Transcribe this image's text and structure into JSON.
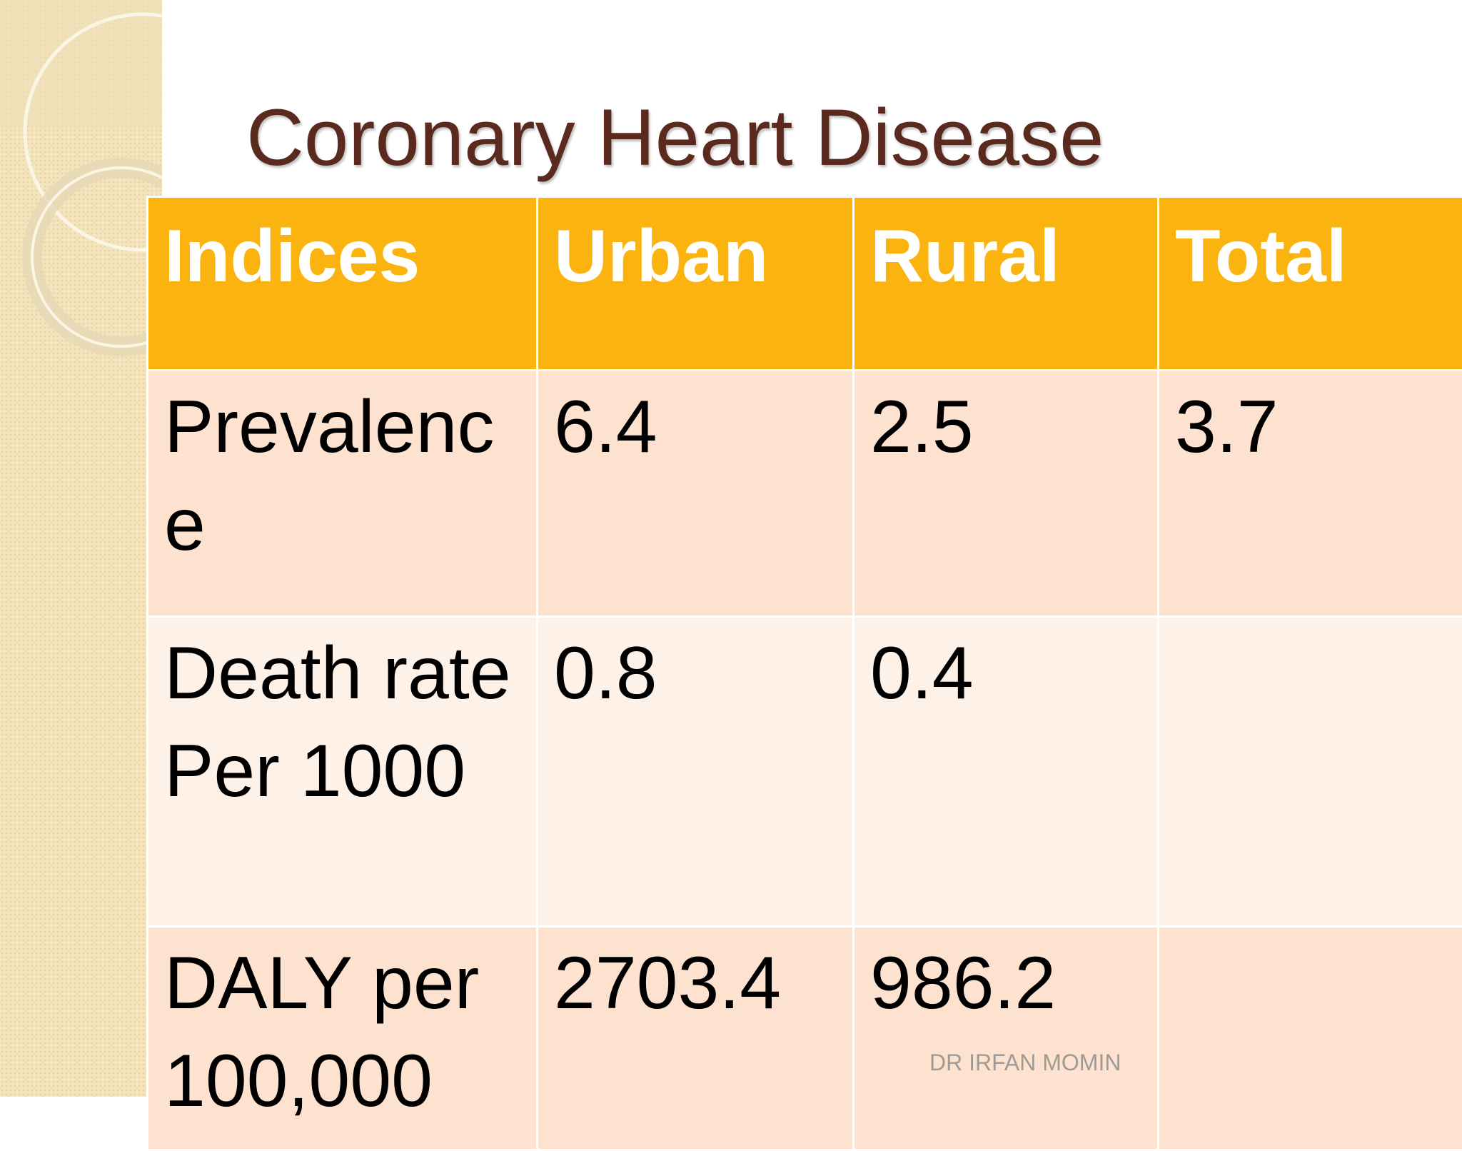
{
  "header": {
    "title": "Coronary Heart Disease"
  },
  "table": {
    "columns": [
      "Indices",
      "Urban",
      "Rural",
      "Total"
    ],
    "rows": [
      [
        "Prevalence",
        "6.4",
        "2.5",
        "3.7"
      ],
      [
        "Death rate\nPer 1000",
        "0.8",
        "0.4",
        null
      ],
      [
        "DALY per 100,000",
        "2703.4",
        "986.2",
        null
      ]
    ]
  },
  "footer": {
    "author": "DR IRFAN MOMIN"
  }
}
